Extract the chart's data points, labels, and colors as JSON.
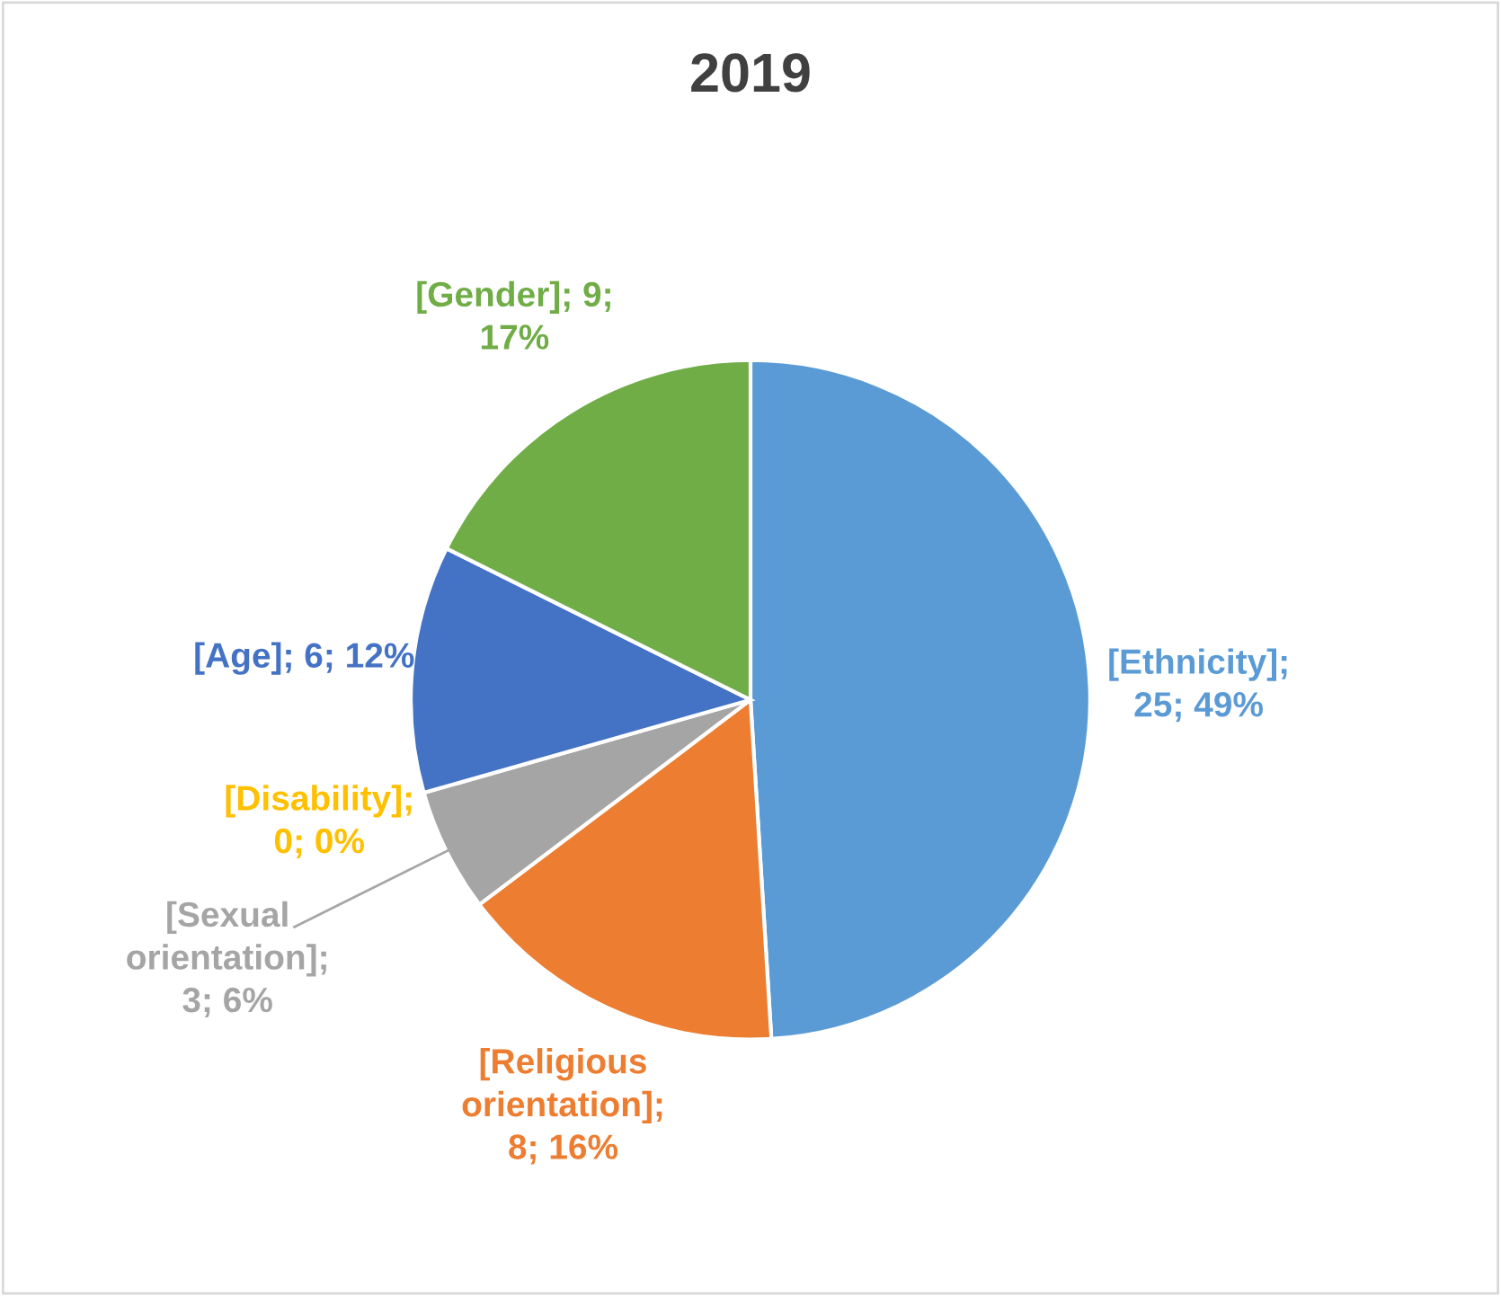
{
  "chart_data": {
    "type": "pie",
    "title": "2019",
    "categories": [
      "[Ethnicity]; 25; 49%",
      "[Religious orientation]; 8; 16%",
      "[Sexual orientation]; 3; 6%",
      "[Disability]; 0; 0%",
      "[Age]; 6; 12%",
      "[Gender]; 9; 17%"
    ],
    "values": [
      25,
      8,
      3,
      0,
      6,
      9
    ],
    "colors": [
      "#5b9bd5",
      "#ed7d31",
      "#a5a5a5",
      "#ffc000",
      "#4472c4",
      "#70ad47"
    ]
  }
}
